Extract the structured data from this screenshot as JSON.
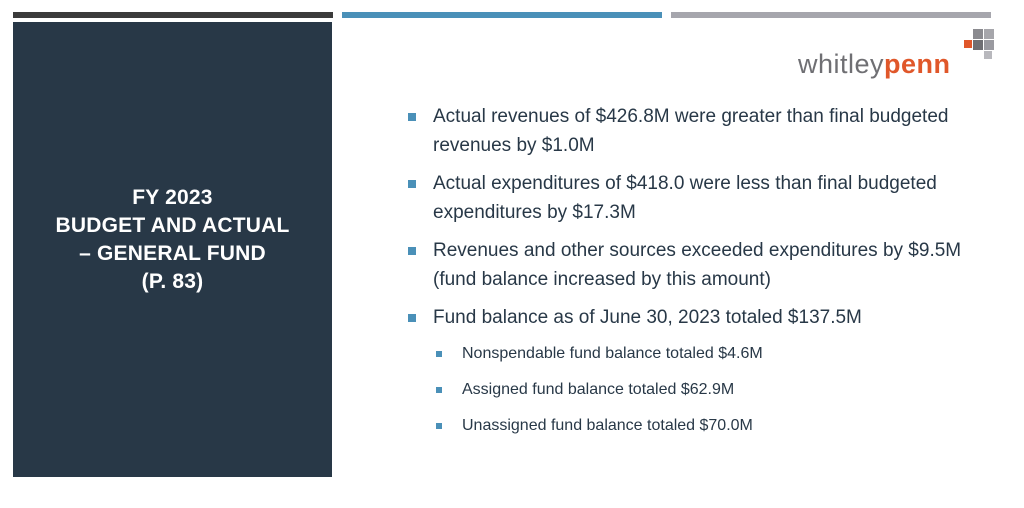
{
  "colors": {
    "panel": "#283847",
    "accent_blue": "#4a90b8",
    "bar_dark": "#3b3b3b",
    "bar_gray": "#a6a6ad",
    "logo_orange": "#e0572a",
    "logo_gray": "#6f6f73"
  },
  "logo": {
    "part1": "whitley",
    "part2": "penn"
  },
  "side_panel": {
    "lines": [
      "FY 2023",
      "BUDGET AND ACTUAL",
      "– GENERAL FUND",
      "(P. 83)"
    ]
  },
  "bullets": [
    "Actual revenues of $426.8M were greater than final budgeted revenues by $1.0M",
    "Actual expenditures of $418.0 were less than final budgeted expenditures by $17.3M",
    "Revenues and other sources exceeded expenditures by $9.5M (fund balance increased by this amount)",
    "Fund balance as of June 30, 2023 totaled $137.5M"
  ],
  "sub_bullets": [
    "Nonspendable fund balance totaled $4.6M",
    "Assigned fund balance totaled $62.9M",
    "Unassigned fund balance totaled $70.0M"
  ]
}
